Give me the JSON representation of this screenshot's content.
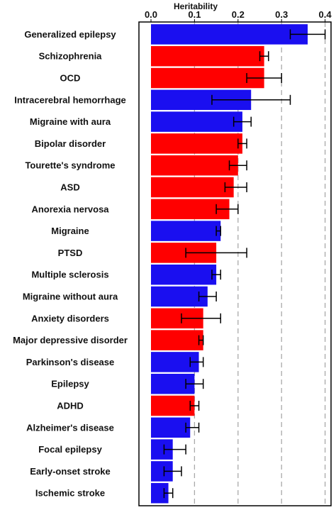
{
  "chart_data": {
    "type": "bar",
    "orientation": "horizontal",
    "title": "Heritability",
    "xlabel": "",
    "ylabel": "",
    "xlim": [
      0,
      0.4
    ],
    "x_ticks": [
      "0.0",
      "0.1",
      "0.2",
      "0.3",
      "0.4"
    ],
    "grid": "dashed vertical lines at 0.1, 0.2, 0.3, 0.4",
    "legend": "none",
    "colors": {
      "blue": "#1a0ff0",
      "red": "#ff0000"
    },
    "categories": [
      "Generalized epilepsy",
      "Schizophrenia",
      "OCD",
      "Intracerebral hemorrhage",
      "Migraine with aura",
      "Bipolar disorder",
      "Tourette's syndrome",
      "ASD",
      "Anorexia nervosa",
      "Migraine",
      "PTSD",
      "Multiple sclerosis",
      "Migraine without aura",
      "Anxiety disorders",
      "Major depressive disorder",
      "Parkinson's disease",
      "Epilepsy",
      "ADHD",
      "Alzheimer's disease",
      "Focal epilepsy",
      "Early-onset stroke",
      "Ischemic stroke"
    ],
    "values": [
      0.36,
      0.26,
      0.26,
      0.23,
      0.21,
      0.21,
      0.2,
      0.19,
      0.18,
      0.16,
      0.15,
      0.15,
      0.13,
      0.12,
      0.12,
      0.11,
      0.1,
      0.1,
      0.09,
      0.05,
      0.05,
      0.04
    ],
    "error_low": [
      0.32,
      0.25,
      0.22,
      0.14,
      0.19,
      0.2,
      0.18,
      0.17,
      0.15,
      0.15,
      0.08,
      0.14,
      0.11,
      0.07,
      0.11,
      0.09,
      0.08,
      0.09,
      0.08,
      0.03,
      0.03,
      0.03
    ],
    "error_high": [
      0.4,
      0.27,
      0.3,
      0.32,
      0.23,
      0.22,
      0.22,
      0.22,
      0.2,
      0.16,
      0.22,
      0.16,
      0.15,
      0.16,
      0.12,
      0.12,
      0.12,
      0.11,
      0.11,
      0.08,
      0.07,
      0.05
    ],
    "bar_colors": [
      "blue",
      "red",
      "red",
      "blue",
      "blue",
      "red",
      "red",
      "red",
      "red",
      "blue",
      "red",
      "blue",
      "blue",
      "red",
      "red",
      "blue",
      "blue",
      "red",
      "blue",
      "blue",
      "blue",
      "blue"
    ]
  }
}
